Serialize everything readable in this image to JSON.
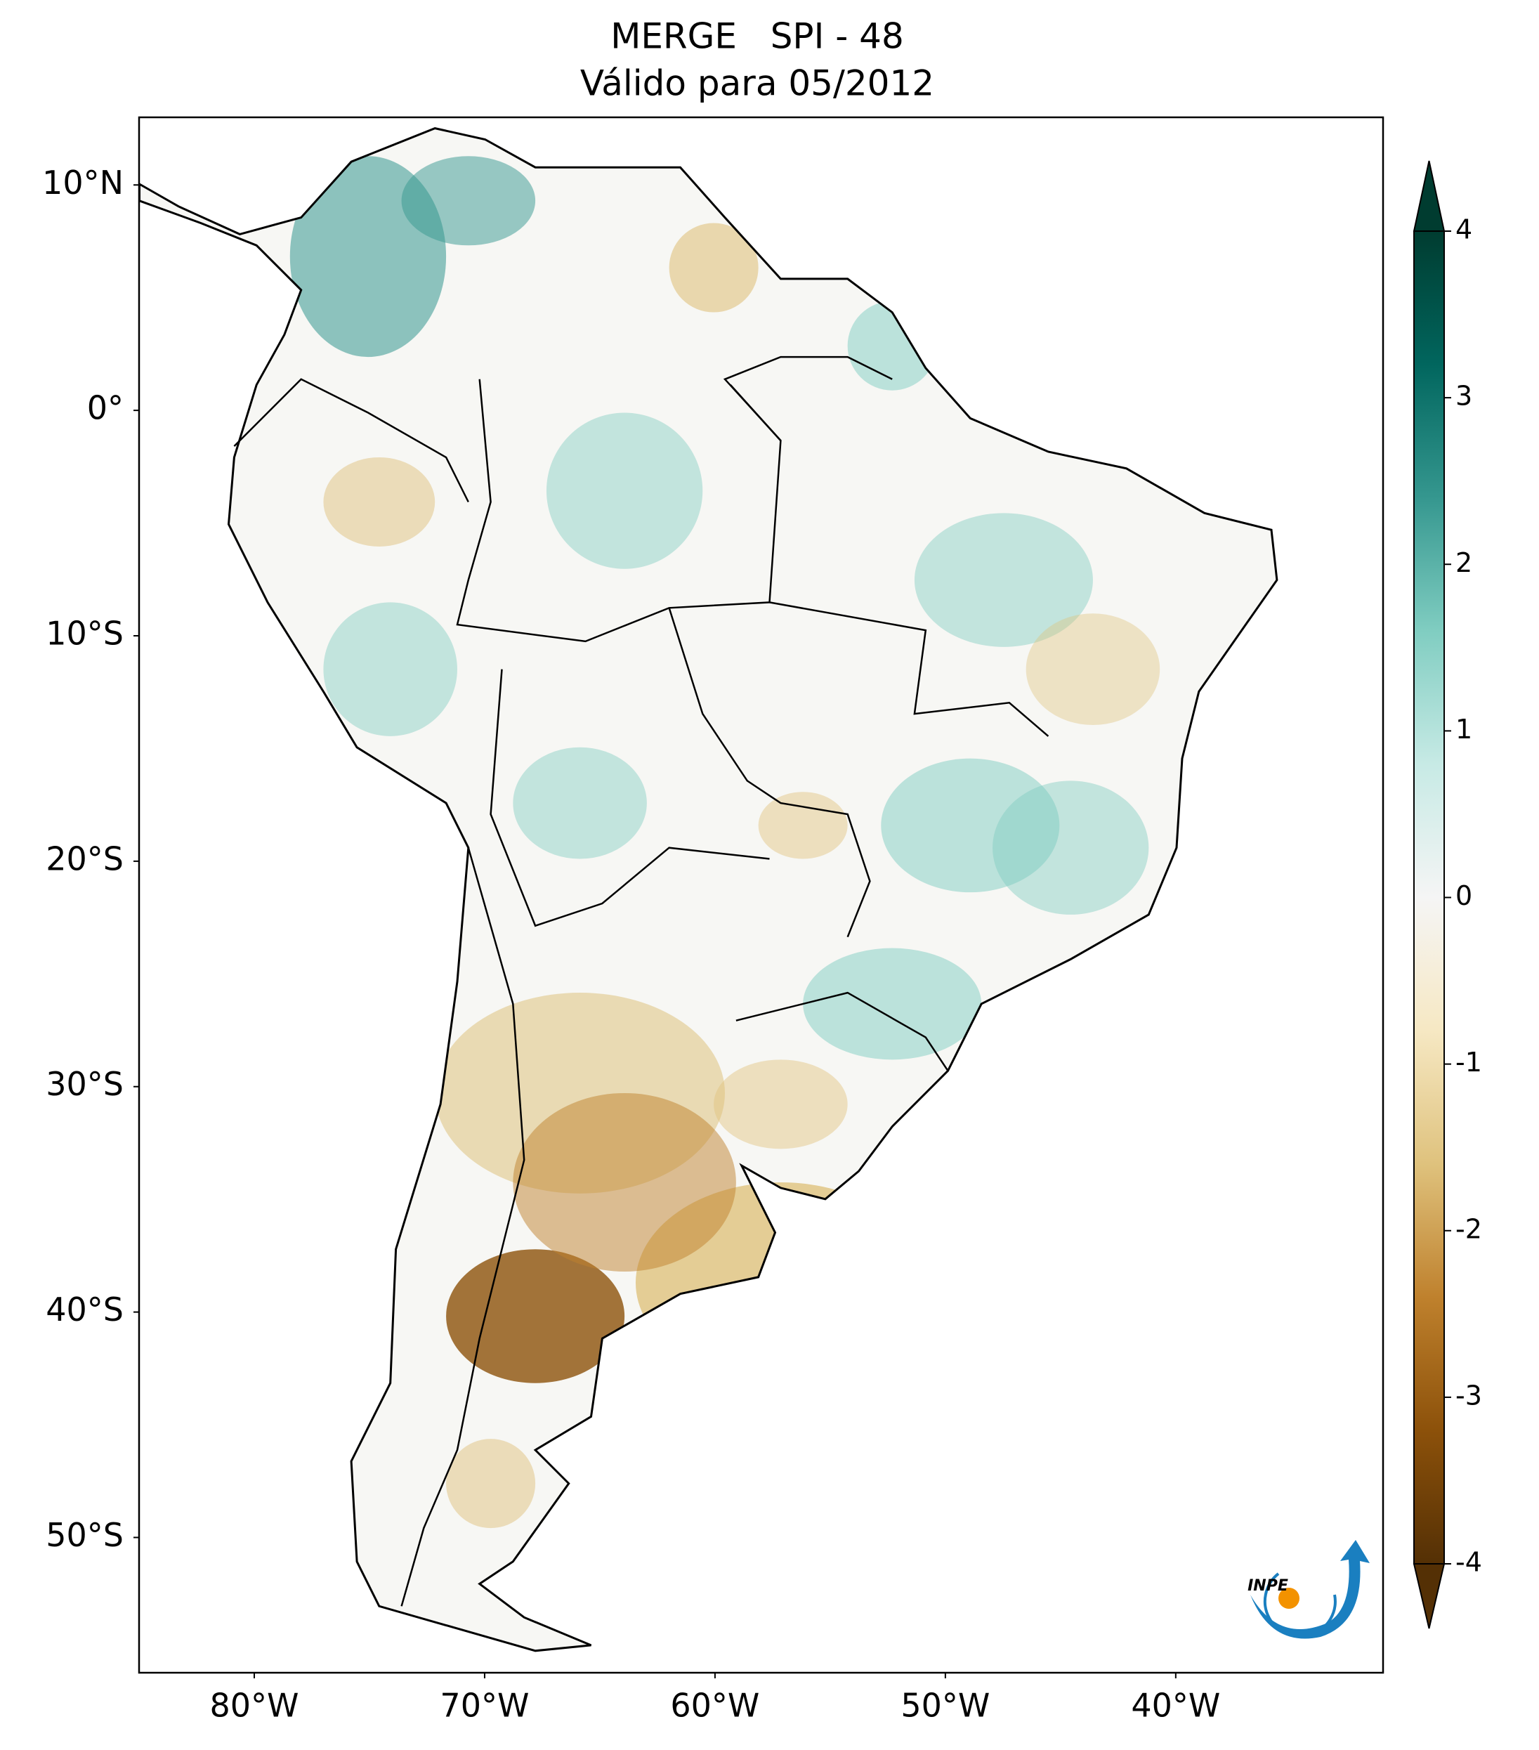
{
  "chart_data": {
    "type": "map",
    "title": "MERGE   SPI - 48",
    "subtitle": "Válido para 05/2012",
    "xlim": [
      -85,
      -31
    ],
    "ylim": [
      -56,
      13
    ],
    "xticks": [
      {
        "value": -80,
        "label": "80°W"
      },
      {
        "value": -70,
        "label": "70°W"
      },
      {
        "value": -60,
        "label": "60°W"
      },
      {
        "value": -50,
        "label": "50°W"
      },
      {
        "value": -40,
        "label": "40°W"
      }
    ],
    "yticks": [
      {
        "value": 10,
        "label": "10°N"
      },
      {
        "value": 0,
        "label": "0°"
      },
      {
        "value": -10,
        "label": "10°S"
      },
      {
        "value": -20,
        "label": "20°S"
      },
      {
        "value": -30,
        "label": "30°S"
      },
      {
        "value": -40,
        "label": "40°S"
      },
      {
        "value": -50,
        "label": "50°S"
      }
    ],
    "colorbar": {
      "colormap": "BrBG",
      "clim": [
        -4,
        4
      ],
      "ticks": [
        -4,
        -3,
        -2,
        -1,
        0,
        1,
        2,
        3,
        4
      ],
      "extend": "both"
    },
    "logo": "INPE"
  }
}
